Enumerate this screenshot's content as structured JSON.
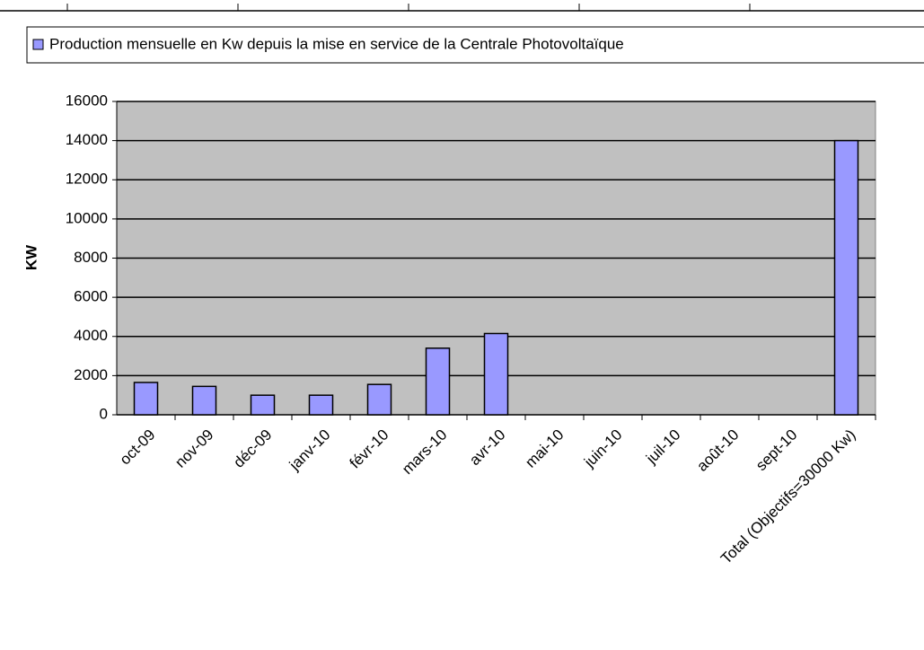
{
  "chart_data": {
    "type": "bar",
    "legend": "Production mensuelle en Kw depuis la mise en service de la Centrale Photovoltaïque",
    "y_label": "KW",
    "categories": [
      "oct-09",
      "nov-09",
      "déc-09",
      "janv-10",
      "févr-10",
      "mars-10",
      "avr-10",
      "mai-10",
      "juin-10",
      "juil-10",
      "août-10",
      "sept-10",
      "Total (Objectifs=30000 Kw)"
    ],
    "values": [
      1650,
      1450,
      1000,
      1000,
      1550,
      3400,
      4150,
      null,
      null,
      null,
      null,
      null,
      14000
    ],
    "color": "#9999ff",
    "ylim": [
      0,
      16000
    ],
    "yticks": [
      0,
      2000,
      4000,
      6000,
      8000,
      10000,
      12000,
      14000,
      16000
    ],
    "grid": true
  }
}
